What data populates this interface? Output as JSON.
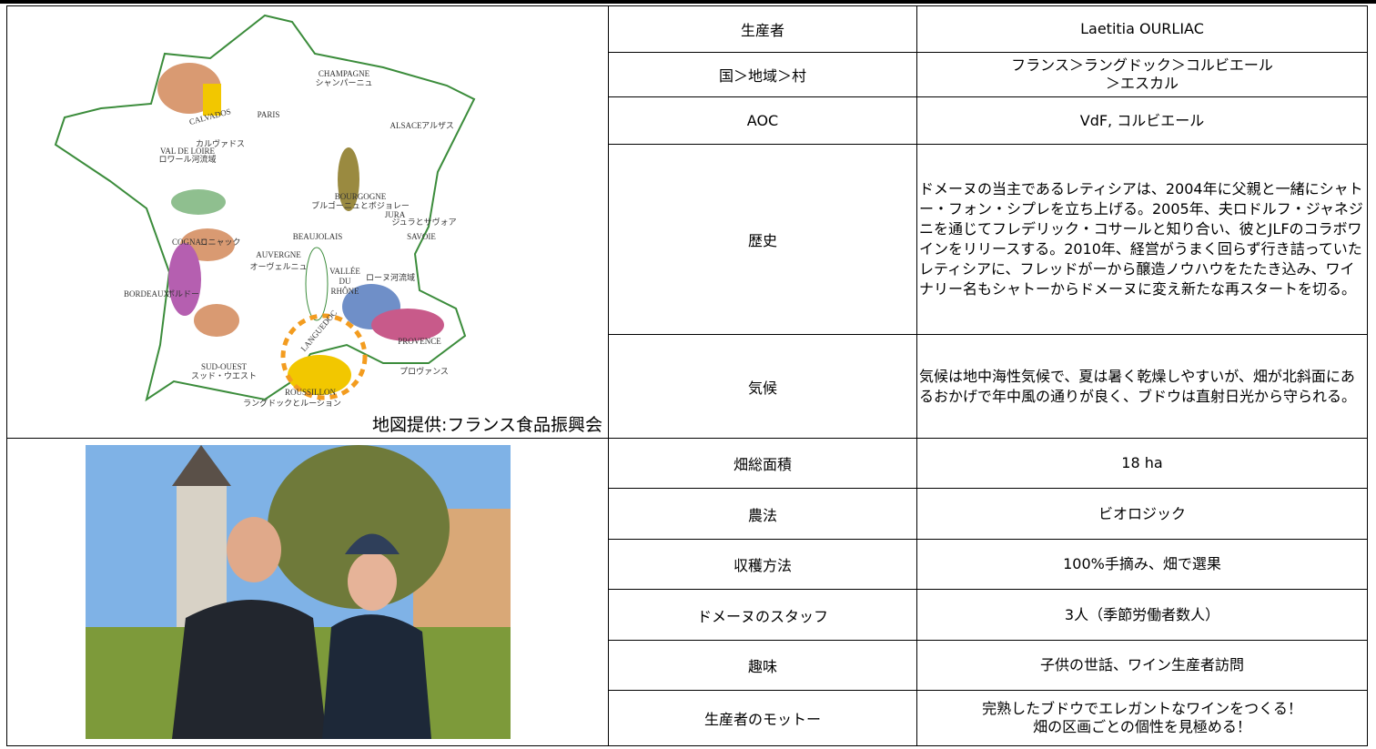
{
  "map": {
    "caption": "地図提供:フランス食品振興会",
    "labels": [
      "CHAMPAGNE",
      "シャンパーニュ",
      "CALVADOS",
      "カルヴァドス",
      "PARIS",
      "ALSACE",
      "アルザス",
      "VAL DE LOIRE",
      "ロワール河流域",
      "BOURGOGNE",
      "ブルゴーニュとボジョレー",
      "JURA",
      "ジュラとサヴォア",
      "SAVOIE",
      "BEAUJOLAIS",
      "COGNAC",
      "コニャック",
      "AUVERGNE",
      "オーヴェルニュ",
      "VALLÉE",
      "DU",
      "RHÔNE",
      "ローヌ河流域",
      "BORDEAUX",
      "ボルドー",
      "LANGUEDOC",
      "PROVENCE",
      "プロヴァンス",
      "SUD-OUEST",
      "スッド・ウエスト",
      "ROUSSILLON",
      "ラングドックとルーション"
    ]
  },
  "table": {
    "rows": [
      [
        "生産者",
        "Laetitia OURLIAC"
      ],
      [
        "国＞地域＞村",
        "フランス＞ラングドック＞コルビエール\n＞エスカル"
      ],
      [
        "AOC",
        "VdF, コルビエール"
      ],
      [
        "歴史",
        "ドメーヌの当主であるレティシアは、2004年に父親と一緒にシャトー・フォン・シプレを立ち上げる。2005年、夫ロドルフ・ジャネジニを通じてフレデリック・コサールと知り合い、彼とJLFのコラボワインをリリースする。2010年、経営がうまく回らず行き詰っていたレティシアに、フレッドがーから醸造ノウハウをたたき込み、ワイナリー名もシャトーからドメーヌに変え新たな再スタートを切る。"
      ],
      [
        "気候",
        "気候は地中海性気候で、夏は暑く乾燥しやすいが、畑が北斜面にあるおかげで年中風の通りが良く、ブドウは直射日光から守られる。"
      ],
      [
        "畑総面積",
        "18 ha"
      ],
      [
        "農法",
        "ビオロジック"
      ],
      [
        "収穫方法",
        "100%手摘み、畑で選果"
      ],
      [
        "ドメーヌのスタッフ",
        "3人（季節労働者数人）"
      ],
      [
        "趣味",
        "子供の世話、ワイン生産者訪問"
      ],
      [
        "生産者のモットー",
        "完熟したブドウでエレガントなワインをつくる！\n畑の区画ごとの個性を見極める！"
      ]
    ]
  }
}
